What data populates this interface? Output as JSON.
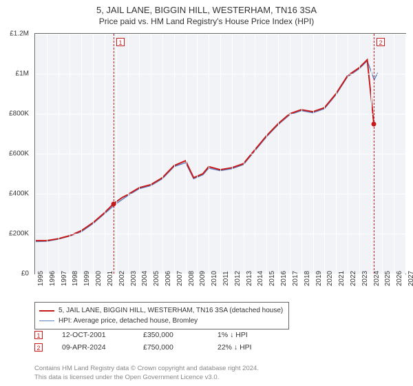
{
  "title_line1": "5, JAIL LANE, BIGGIN HILL, WESTERHAM, TN16 3SA",
  "title_line2": "Price paid vs. HM Land Registry's House Price Index (HPI)",
  "chart": {
    "type": "line",
    "background_color": "#f2f3f7",
    "grid_color": "#ffffff",
    "border_color": "#666666",
    "x_start": 1995,
    "x_end": 2027,
    "x_ticks": [
      1995,
      1996,
      1997,
      1998,
      1999,
      2000,
      2001,
      2002,
      2003,
      2004,
      2005,
      2006,
      2007,
      2008,
      2009,
      2010,
      2011,
      2012,
      2013,
      2014,
      2015,
      2016,
      2017,
      2018,
      2019,
      2020,
      2021,
      2022,
      2023,
      2024,
      2025,
      2026,
      2027
    ],
    "ylim": [
      0,
      1200000
    ],
    "y_ticks": [
      0,
      200000,
      400000,
      600000,
      800000,
      1000000,
      1200000
    ],
    "y_tick_labels": [
      "£0",
      "£200K",
      "£400K",
      "£600K",
      "£800K",
      "£1M",
      "£1.2M"
    ],
    "series": [
      {
        "name": "red",
        "color": "#c61a1a",
        "width": 2,
        "legend": "5, JAIL LANE, BIGGIN HILL, WESTERHAM, TN16 3SA (detached house)",
        "xy": [
          [
            1995,
            165000
          ],
          [
            1996,
            165000
          ],
          [
            1997,
            175000
          ],
          [
            1998,
            190000
          ],
          [
            1999,
            215000
          ],
          [
            2000,
            255000
          ],
          [
            2001,
            305000
          ],
          [
            2001.78,
            350000
          ],
          [
            2002.5,
            380000
          ],
          [
            2003,
            395000
          ],
          [
            2004,
            430000
          ],
          [
            2005,
            445000
          ],
          [
            2006,
            480000
          ],
          [
            2007,
            540000
          ],
          [
            2008,
            565000
          ],
          [
            2008.7,
            480000
          ],
          [
            2009.5,
            500000
          ],
          [
            2010,
            535000
          ],
          [
            2011,
            520000
          ],
          [
            2012,
            530000
          ],
          [
            2013,
            550000
          ],
          [
            2014,
            620000
          ],
          [
            2015,
            690000
          ],
          [
            2016,
            750000
          ],
          [
            2017,
            800000
          ],
          [
            2018,
            820000
          ],
          [
            2019,
            810000
          ],
          [
            2020,
            830000
          ],
          [
            2021,
            900000
          ],
          [
            2022,
            990000
          ],
          [
            2023,
            1030000
          ],
          [
            2023.7,
            1070000
          ],
          [
            2024.27,
            750000
          ]
        ]
      },
      {
        "name": "blue",
        "color": "#5a7fbf",
        "width": 1.4,
        "legend": "HPI: Average price, detached house, Bromley",
        "xy": [
          [
            1995,
            160000
          ],
          [
            1996,
            162000
          ],
          [
            1997,
            172000
          ],
          [
            1998,
            188000
          ],
          [
            1999,
            210000
          ],
          [
            2000,
            250000
          ],
          [
            2001,
            300000
          ],
          [
            2002,
            350000
          ],
          [
            2003,
            390000
          ],
          [
            2004,
            425000
          ],
          [
            2005,
            440000
          ],
          [
            2006,
            475000
          ],
          [
            2007,
            535000
          ],
          [
            2008,
            555000
          ],
          [
            2008.7,
            475000
          ],
          [
            2009.5,
            495000
          ],
          [
            2010,
            528000
          ],
          [
            2011,
            515000
          ],
          [
            2012,
            525000
          ],
          [
            2013,
            545000
          ],
          [
            2014,
            615000
          ],
          [
            2015,
            685000
          ],
          [
            2016,
            745000
          ],
          [
            2017,
            795000
          ],
          [
            2018,
            815000
          ],
          [
            2019,
            805000
          ],
          [
            2020,
            825000
          ],
          [
            2021,
            895000
          ],
          [
            2022,
            985000
          ],
          [
            2023,
            1025000
          ],
          [
            2023.7,
            1065000
          ],
          [
            2024.3,
            970000
          ],
          [
            2024.6,
            1005000
          ]
        ]
      }
    ],
    "markers": [
      {
        "label": "1",
        "x": 2001.78,
        "y": 350000
      },
      {
        "label": "2",
        "x": 2024.27,
        "y": 750000
      }
    ]
  },
  "marker_rows": [
    {
      "key": "1",
      "date": "12-OCT-2001",
      "price": "£350,000",
      "delta": "1% ↓ HPI"
    },
    {
      "key": "2",
      "date": "09-APR-2024",
      "price": "£750,000",
      "delta": "22% ↓ HPI"
    }
  ],
  "footer_line1": "Contains HM Land Registry data © Crown copyright and database right 2024.",
  "footer_line2": "This data is licensed under the Open Government Licence v3.0.",
  "colors": {
    "marker_border": "#c61a1a",
    "text": "#333333",
    "footer": "#888888"
  }
}
